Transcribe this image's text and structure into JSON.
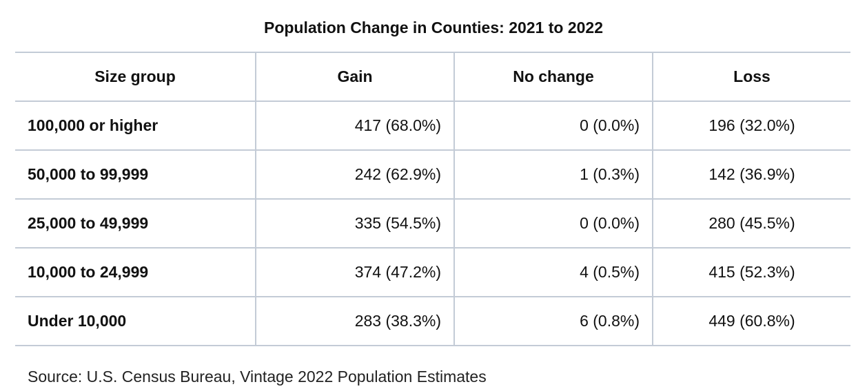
{
  "title": "Population Change in Counties: 2021 to 2022",
  "table": {
    "headers": [
      "Size group",
      "Gain",
      "No change",
      "Loss"
    ],
    "rows": [
      {
        "size_group": "100,000 or higher",
        "gain": "417 (68.0%)",
        "no_change": "0 (0.0%)",
        "loss": "196 (32.0%)"
      },
      {
        "size_group": "50,000 to 99,999",
        "gain": "242 (62.9%)",
        "no_change": "1 (0.3%)",
        "loss": "142 (36.9%)"
      },
      {
        "size_group": "25,000 to 49,999",
        "gain": "335 (54.5%)",
        "no_change": "0 (0.0%)",
        "loss": "280 (45.5%)"
      },
      {
        "size_group": "10,000 to 24,999",
        "gain": "374 (47.2%)",
        "no_change": "4 (0.5%)",
        "loss": "415 (52.3%)"
      },
      {
        "size_group": "Under 10,000",
        "gain": "283 (38.3%)",
        "no_change": "6 (0.8%)",
        "loss": "449 (60.8%)"
      }
    ]
  },
  "source": "Source: U.S. Census Bureau, Vintage 2022 Population Estimates",
  "colors": {
    "border": "#c3cbd6",
    "text": "#111111"
  }
}
